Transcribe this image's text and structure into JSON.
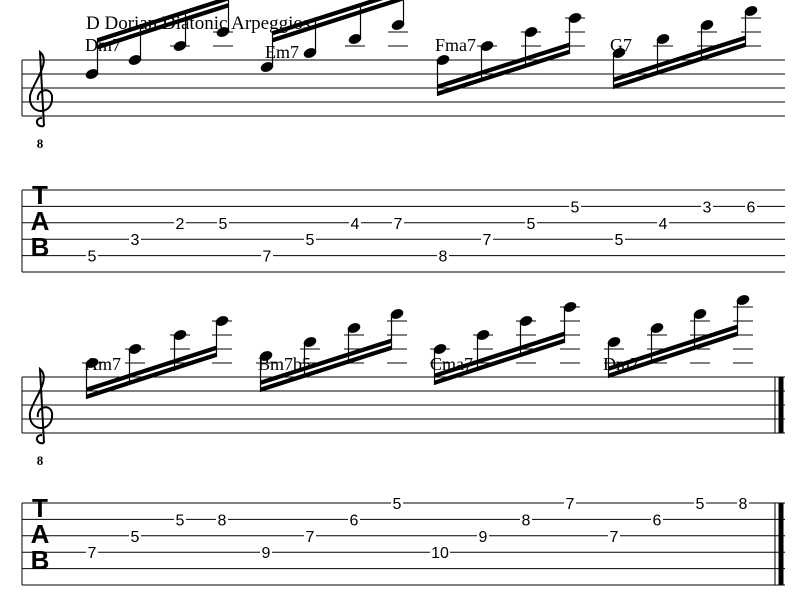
{
  "title": "D Dorian Diatonic Arpeggios",
  "clef_octave": "8",
  "tab_label": [
    "T",
    "A",
    "B"
  ],
  "systems": [
    {
      "chords": [
        "Dm7",
        "Em7",
        "Fma7",
        "G7"
      ],
      "tab": [
        [
          null,
          null,
          null,
          null,
          null,
          null,
          null,
          null,
          null,
          null,
          null,
          null,
          null,
          null,
          null,
          null
        ],
        [
          null,
          null,
          null,
          null,
          null,
          null,
          null,
          null,
          null,
          null,
          null,
          5,
          null,
          null,
          3,
          6
        ],
        [
          null,
          null,
          2,
          5,
          null,
          null,
          4,
          7,
          null,
          null,
          5,
          null,
          null,
          4,
          null,
          null
        ],
        [
          null,
          3,
          null,
          null,
          null,
          5,
          null,
          null,
          null,
          7,
          null,
          null,
          5,
          null,
          null,
          null
        ],
        [
          5,
          null,
          null,
          null,
          7,
          null,
          null,
          null,
          8,
          null,
          null,
          null,
          null,
          null,
          null,
          null
        ],
        [
          null,
          null,
          null,
          null,
          null,
          null,
          null,
          null,
          null,
          null,
          null,
          null,
          null,
          null,
          null,
          null
        ]
      ]
    },
    {
      "chords": [
        "Am7",
        "Bm7b5",
        "Cma7",
        "Dm7"
      ],
      "tab": [
        [
          null,
          null,
          null,
          null,
          null,
          null,
          null,
          5,
          null,
          null,
          null,
          7,
          null,
          null,
          5,
          8
        ],
        [
          null,
          null,
          5,
          8,
          null,
          null,
          6,
          null,
          null,
          null,
          8,
          null,
          null,
          6,
          null,
          null
        ],
        [
          null,
          5,
          null,
          null,
          null,
          7,
          null,
          null,
          null,
          9,
          null,
          null,
          7,
          null,
          null,
          null
        ],
        [
          7,
          null,
          null,
          null,
          9,
          null,
          null,
          null,
          10,
          null,
          null,
          null,
          null,
          null,
          null,
          null
        ],
        [
          null,
          null,
          null,
          null,
          null,
          null,
          null,
          null,
          null,
          null,
          null,
          null,
          null,
          null,
          null,
          null
        ],
        [
          null,
          null,
          null,
          null,
          null,
          null,
          null,
          null,
          null,
          null,
          null,
          null,
          null,
          null,
          null,
          null
        ]
      ]
    }
  ]
}
